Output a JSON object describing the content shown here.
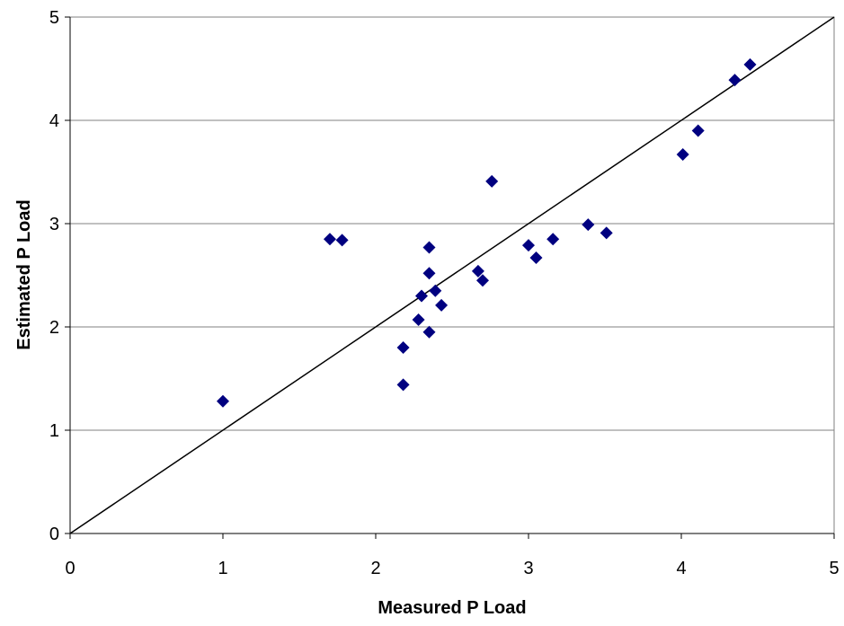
{
  "chart_data": {
    "type": "scatter",
    "title": "",
    "xlabel": "Measured P Load",
    "ylabel": "Estimated P Load",
    "xlim": [
      0,
      5
    ],
    "ylim": [
      0,
      5
    ],
    "xticks": [
      "0",
      "1",
      "2",
      "3",
      "4",
      "5"
    ],
    "yticks": [
      "0",
      "1",
      "2",
      "3",
      "4",
      "5"
    ],
    "grid": "horizontal",
    "legend": "none",
    "reference_line": {
      "type": "1:1",
      "from": [
        0,
        0
      ],
      "to": [
        5,
        5
      ]
    },
    "marker": "diamond",
    "colors": {
      "marker": "#000080",
      "line": "#000000",
      "grid": "#808080",
      "frame": "#808080"
    },
    "points": [
      {
        "x": 1.0,
        "y": 1.28
      },
      {
        "x": 1.7,
        "y": 2.85
      },
      {
        "x": 1.78,
        "y": 2.84
      },
      {
        "x": 2.18,
        "y": 1.44
      },
      {
        "x": 2.18,
        "y": 1.8
      },
      {
        "x": 2.28,
        "y": 2.07
      },
      {
        "x": 2.3,
        "y": 2.3
      },
      {
        "x": 2.35,
        "y": 1.95
      },
      {
        "x": 2.35,
        "y": 2.52
      },
      {
        "x": 2.35,
        "y": 2.77
      },
      {
        "x": 2.39,
        "y": 2.35
      },
      {
        "x": 2.43,
        "y": 2.21
      },
      {
        "x": 2.67,
        "y": 2.54
      },
      {
        "x": 2.7,
        "y": 2.45
      },
      {
        "x": 2.76,
        "y": 3.41
      },
      {
        "x": 3.0,
        "y": 2.79
      },
      {
        "x": 3.05,
        "y": 2.67
      },
      {
        "x": 3.16,
        "y": 2.85
      },
      {
        "x": 3.39,
        "y": 2.99
      },
      {
        "x": 3.51,
        "y": 2.91
      },
      {
        "x": 4.01,
        "y": 3.67
      },
      {
        "x": 4.11,
        "y": 3.9
      },
      {
        "x": 4.35,
        "y": 4.39
      },
      {
        "x": 4.45,
        "y": 4.54
      }
    ]
  }
}
